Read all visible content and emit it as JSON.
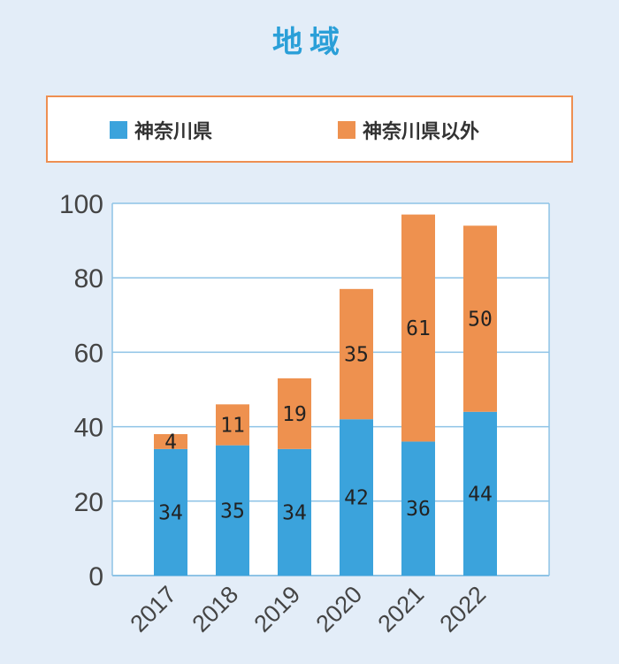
{
  "chart_data": {
    "type": "bar",
    "stacked": true,
    "title": "地域",
    "categories": [
      "2017",
      "2018",
      "2019",
      "2020",
      "2021",
      "2022"
    ],
    "series": [
      {
        "name": "神奈川県",
        "color": "#3ba3dc",
        "values": [
          34,
          35,
          34,
          42,
          36,
          44
        ]
      },
      {
        "name": "神奈川県以外",
        "color": "#ee914f",
        "values": [
          4,
          11,
          19,
          35,
          61,
          50
        ]
      }
    ],
    "ylim": [
      0,
      100
    ],
    "yticks": [
      0,
      20,
      40,
      60,
      80,
      100
    ],
    "xlabel": "",
    "ylabel": "",
    "grid": true,
    "legend": "top"
  }
}
